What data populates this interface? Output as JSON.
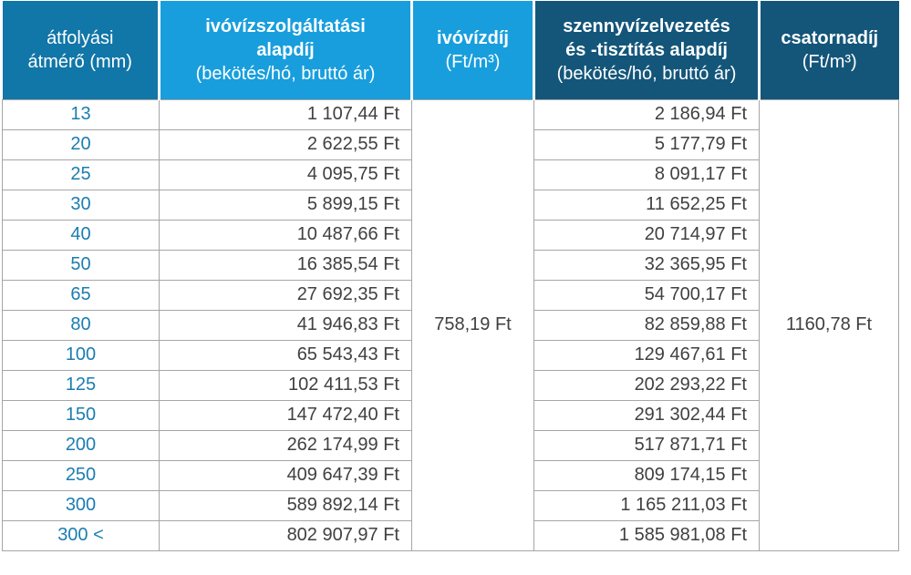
{
  "colors": {
    "header_medium": "#1176a8",
    "header_light": "#189edd",
    "header_dark": "#14567a",
    "grid": "#a6a6a6",
    "value_text": "#404040",
    "diameter_text": "#1b7db1",
    "header_text": "#ffffff"
  },
  "table": {
    "headers": {
      "diameter": {
        "line1": "átfolyási",
        "line2": "átmérő (mm)"
      },
      "water_base": {
        "bold1": "ivóvízszolgáltatási",
        "bold2": "alapdíj",
        "sub": "(bekötés/hó, bruttó ár)"
      },
      "water_unit": {
        "bold1": "ivóvízdíj",
        "sub": "(Ft/m³)"
      },
      "sewer_base": {
        "bold1": "szennyvízelvezetés",
        "bold2": "és -tisztítás alapdíj",
        "sub": "(bekötés/hó, bruttó ár)"
      },
      "sewer_unit": {
        "bold1": "csatornadíj",
        "sub": "(Ft/m³)"
      }
    },
    "water_unit_fee": "758,19 Ft",
    "sewer_unit_fee": "1160,78 Ft",
    "rows": [
      {
        "diameter": "13",
        "water_base_fee": "1 107,44 Ft",
        "sewer_base_fee": "2 186,94 Ft"
      },
      {
        "diameter": "20",
        "water_base_fee": "2 622,55 Ft",
        "sewer_base_fee": "5 177,79 Ft"
      },
      {
        "diameter": "25",
        "water_base_fee": "4 095,75 Ft",
        "sewer_base_fee": "8 091,17 Ft"
      },
      {
        "diameter": "30",
        "water_base_fee": "5 899,15 Ft",
        "sewer_base_fee": "11 652,25 Ft"
      },
      {
        "diameter": "40",
        "water_base_fee": "10 487,66 Ft",
        "sewer_base_fee": "20 714,97 Ft"
      },
      {
        "diameter": "50",
        "water_base_fee": "16 385,54 Ft",
        "sewer_base_fee": "32 365,95 Ft"
      },
      {
        "diameter": "65",
        "water_base_fee": "27 692,35 Ft",
        "sewer_base_fee": "54 700,17 Ft"
      },
      {
        "diameter": "80",
        "water_base_fee": "41 946,83 Ft",
        "sewer_base_fee": "82 859,88 Ft"
      },
      {
        "diameter": "100",
        "water_base_fee": "65 543,43 Ft",
        "sewer_base_fee": "129 467,61 Ft"
      },
      {
        "diameter": "125",
        "water_base_fee": "102 411,53 Ft",
        "sewer_base_fee": "202 293,22 Ft"
      },
      {
        "diameter": "150",
        "water_base_fee": "147 472,40 Ft",
        "sewer_base_fee": "291 302,44 Ft"
      },
      {
        "diameter": "200",
        "water_base_fee": "262 174,99 Ft",
        "sewer_base_fee": "517 871,71 Ft"
      },
      {
        "diameter": "250",
        "water_base_fee": "409 647,39 Ft",
        "sewer_base_fee": "809 174,15 Ft"
      },
      {
        "diameter": "300",
        "water_base_fee": "589 892,14 Ft",
        "sewer_base_fee": "1 165 211,03 Ft"
      },
      {
        "diameter": "300 <",
        "water_base_fee": "802 907,97 Ft",
        "sewer_base_fee": "1 585 981,08 Ft"
      }
    ]
  }
}
